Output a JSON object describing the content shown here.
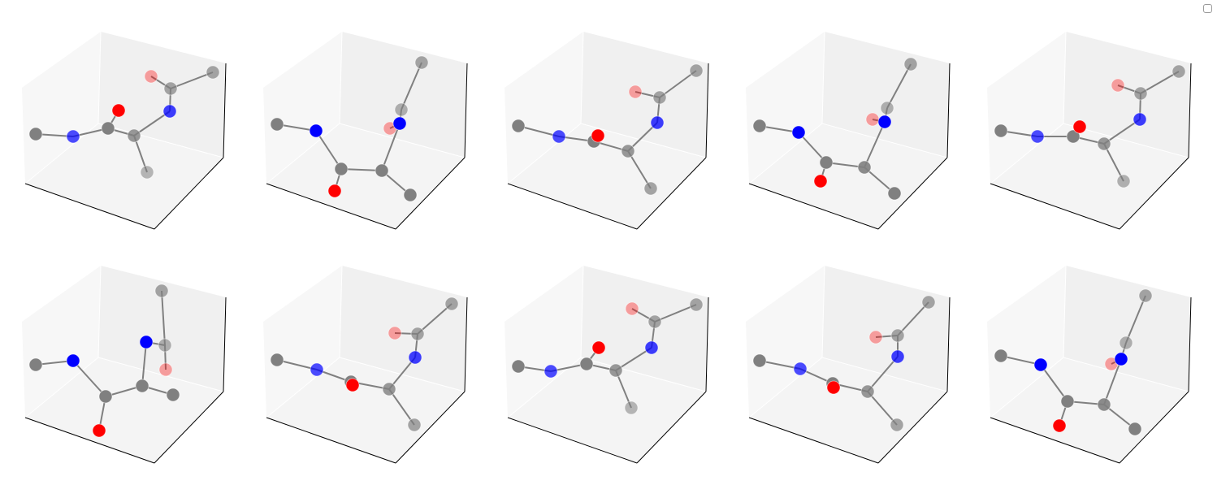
{
  "colors": {
    "carbon": "#808080",
    "nitrogen": "#0000ff",
    "oxygen": "#ff0000",
    "bond": "#808080",
    "pane_left": "#f7f7f7",
    "pane_back": "#f0f0f0",
    "pane_floor": "#f4f4f4",
    "axis_line": "#000000"
  },
  "panels": [
    {
      "atoms": [
        [
          "C",
          44,
          165,
          1
        ],
        [
          "N",
          90,
          168,
          0.7
        ],
        [
          "C",
          133,
          158,
          1
        ],
        [
          "O",
          146,
          136,
          1
        ],
        [
          "C",
          165,
          167,
          0.8
        ],
        [
          "N",
          209,
          137,
          0.75
        ],
        [
          "C",
          210,
          109,
          0.7
        ],
        [
          "O",
          186,
          94,
          0.35
        ],
        [
          "C",
          262,
          89,
          0.7
        ],
        [
          "C",
          181,
          212,
          0.55
        ]
      ],
      "bonds": [
        [
          0,
          1
        ],
        [
          1,
          2
        ],
        [
          2,
          3
        ],
        [
          2,
          4
        ],
        [
          4,
          5
        ],
        [
          5,
          6
        ],
        [
          6,
          7
        ],
        [
          6,
          8
        ],
        [
          4,
          9
        ]
      ]
    },
    {
      "atoms": [
        [
          "C",
          341,
          153,
          1
        ],
        [
          "N",
          389,
          161,
          1
        ],
        [
          "C",
          420,
          208,
          1
        ],
        [
          "O",
          412,
          235,
          1
        ],
        [
          "C",
          470,
          210,
          1
        ],
        [
          "C",
          505,
          240,
          1
        ],
        [
          "N",
          492,
          152,
          1
        ],
        [
          "O",
          480,
          158,
          0.35
        ],
        [
          "C",
          494,
          135,
          0.6
        ],
        [
          "C",
          519,
          77,
          0.7
        ]
      ],
      "bonds": [
        [
          0,
          1
        ],
        [
          1,
          2
        ],
        [
          2,
          3
        ],
        [
          2,
          4
        ],
        [
          4,
          5
        ],
        [
          4,
          6
        ],
        [
          6,
          7
        ],
        [
          6,
          8
        ],
        [
          8,
          9
        ]
      ]
    },
    {
      "atoms": [
        [
          "C",
          638,
          155,
          1
        ],
        [
          "N",
          688,
          168,
          0.7
        ],
        [
          "C",
          731,
          174,
          1
        ],
        [
          "O",
          736,
          167,
          1
        ],
        [
          "C",
          773,
          186,
          0.8
        ],
        [
          "N",
          809,
          151,
          0.75
        ],
        [
          "C",
          812,
          120,
          0.7
        ],
        [
          "O",
          782,
          113,
          0.35
        ],
        [
          "C",
          857,
          87,
          0.7
        ],
        [
          "C",
          801,
          232,
          0.7
        ]
      ],
      "bonds": [
        [
          0,
          1
        ],
        [
          1,
          2
        ],
        [
          2,
          3
        ],
        [
          2,
          4
        ],
        [
          4,
          5
        ],
        [
          5,
          6
        ],
        [
          6,
          7
        ],
        [
          6,
          8
        ],
        [
          4,
          9
        ]
      ]
    },
    {
      "atoms": [
        [
          "C",
          935,
          155,
          1
        ],
        [
          "N",
          983,
          163,
          1
        ],
        [
          "C",
          1017,
          200,
          1
        ],
        [
          "O",
          1010,
          223,
          1
        ],
        [
          "C",
          1064,
          206,
          0.9
        ],
        [
          "C",
          1101,
          238,
          1
        ],
        [
          "N",
          1089,
          150,
          1
        ],
        [
          "O",
          1074,
          147,
          0.35
        ],
        [
          "C",
          1092,
          133,
          0.6
        ],
        [
          "C",
          1121,
          79,
          0.7
        ]
      ],
      "bonds": [
        [
          0,
          1
        ],
        [
          1,
          2
        ],
        [
          2,
          3
        ],
        [
          2,
          4
        ],
        [
          4,
          5
        ],
        [
          4,
          6
        ],
        [
          6,
          7
        ],
        [
          6,
          8
        ],
        [
          8,
          9
        ]
      ]
    },
    {
      "atoms": [
        [
          "C",
          1232,
          161,
          1
        ],
        [
          "N",
          1277,
          168,
          0.7
        ],
        [
          "C",
          1321,
          168,
          1
        ],
        [
          "O",
          1329,
          156,
          1
        ],
        [
          "C",
          1359,
          177,
          0.8
        ],
        [
          "N",
          1403,
          147,
          0.75
        ],
        [
          "C",
          1404,
          115,
          0.7
        ],
        [
          "O",
          1376,
          105,
          0.35
        ],
        [
          "C",
          1451,
          88,
          0.7
        ],
        [
          "C",
          1383,
          223,
          0.6
        ]
      ],
      "bonds": [
        [
          0,
          1
        ],
        [
          1,
          2
        ],
        [
          2,
          3
        ],
        [
          2,
          4
        ],
        [
          4,
          5
        ],
        [
          5,
          6
        ],
        [
          6,
          7
        ],
        [
          6,
          8
        ],
        [
          4,
          9
        ]
      ]
    },
    {
      "atoms": [
        [
          "C",
          44,
          449,
          1
        ],
        [
          "N",
          90,
          444,
          1
        ],
        [
          "C",
          130,
          488,
          1
        ],
        [
          "O",
          122,
          530,
          1
        ],
        [
          "C",
          175,
          475,
          1
        ],
        [
          "C",
          213,
          486,
          1
        ],
        [
          "N",
          180,
          421,
          1
        ],
        [
          "C",
          203,
          425,
          0.6
        ],
        [
          "O",
          204,
          455,
          0.35
        ],
        [
          "C",
          199,
          358,
          0.7
        ]
      ],
      "bonds": [
        [
          0,
          1
        ],
        [
          1,
          2
        ],
        [
          2,
          3
        ],
        [
          2,
          4
        ],
        [
          4,
          5
        ],
        [
          4,
          6
        ],
        [
          6,
          7
        ],
        [
          7,
          8
        ],
        [
          7,
          9
        ]
      ]
    },
    {
      "atoms": [
        [
          "C",
          341,
          443,
          1
        ],
        [
          "N",
          390,
          455,
          0.7
        ],
        [
          "C",
          432,
          470,
          1
        ],
        [
          "O",
          434,
          474,
          1
        ],
        [
          "C",
          479,
          479,
          0.8
        ],
        [
          "N",
          511,
          440,
          0.75
        ],
        [
          "C",
          514,
          411,
          0.7
        ],
        [
          "O",
          486,
          410,
          0.35
        ],
        [
          "C",
          556,
          374,
          0.7
        ],
        [
          "C",
          510,
          523,
          0.7
        ]
      ],
      "bonds": [
        [
          0,
          1
        ],
        [
          1,
          2
        ],
        [
          2,
          3
        ],
        [
          2,
          4
        ],
        [
          4,
          5
        ],
        [
          5,
          6
        ],
        [
          6,
          7
        ],
        [
          6,
          8
        ],
        [
          4,
          9
        ]
      ]
    },
    {
      "atoms": [
        [
          "C",
          638,
          451,
          1
        ],
        [
          "N",
          678,
          457,
          0.7
        ],
        [
          "C",
          722,
          448,
          1
        ],
        [
          "O",
          737,
          428,
          1
        ],
        [
          "C",
          758,
          456,
          0.8
        ],
        [
          "N",
          802,
          428,
          0.75
        ],
        [
          "C",
          806,
          396,
          0.7
        ],
        [
          "O",
          778,
          380,
          0.35
        ],
        [
          "C",
          857,
          375,
          0.7
        ],
        [
          "C",
          777,
          502,
          0.55
        ]
      ],
      "bonds": [
        [
          0,
          1
        ],
        [
          1,
          2
        ],
        [
          2,
          3
        ],
        [
          2,
          4
        ],
        [
          4,
          5
        ],
        [
          5,
          6
        ],
        [
          6,
          7
        ],
        [
          6,
          8
        ],
        [
          4,
          9
        ]
      ]
    },
    {
      "atoms": [
        [
          "C",
          935,
          444,
          1
        ],
        [
          "N",
          985,
          454,
          0.7
        ],
        [
          "C",
          1025,
          472,
          1
        ],
        [
          "O",
          1026,
          477,
          1
        ],
        [
          "C",
          1068,
          482,
          0.8
        ],
        [
          "N",
          1105,
          439,
          0.75
        ],
        [
          "C",
          1105,
          413,
          0.7
        ],
        [
          "O",
          1078,
          415,
          0.35
        ],
        [
          "C",
          1143,
          372,
          0.7
        ],
        [
          "C",
          1104,
          523,
          0.7
        ]
      ],
      "bonds": [
        [
          0,
          1
        ],
        [
          1,
          2
        ],
        [
          2,
          3
        ],
        [
          2,
          4
        ],
        [
          4,
          5
        ],
        [
          5,
          6
        ],
        [
          6,
          7
        ],
        [
          6,
          8
        ],
        [
          4,
          9
        ]
      ]
    },
    {
      "atoms": [
        [
          "C",
          1232,
          438,
          1
        ],
        [
          "N",
          1281,
          449,
          1
        ],
        [
          "C",
          1314,
          494,
          1
        ],
        [
          "O",
          1304,
          524,
          1
        ],
        [
          "C",
          1359,
          498,
          0.9
        ],
        [
          "C",
          1397,
          528,
          1
        ],
        [
          "N",
          1380,
          442,
          1
        ],
        [
          "O",
          1368,
          448,
          0.35
        ],
        [
          "C",
          1386,
          422,
          0.6
        ],
        [
          "C",
          1410,
          364,
          0.7
        ]
      ],
      "bonds": [
        [
          0,
          1
        ],
        [
          1,
          2
        ],
        [
          2,
          3
        ],
        [
          2,
          4
        ],
        [
          4,
          5
        ],
        [
          4,
          6
        ],
        [
          6,
          7
        ],
        [
          6,
          8
        ],
        [
          8,
          9
        ]
      ]
    }
  ]
}
